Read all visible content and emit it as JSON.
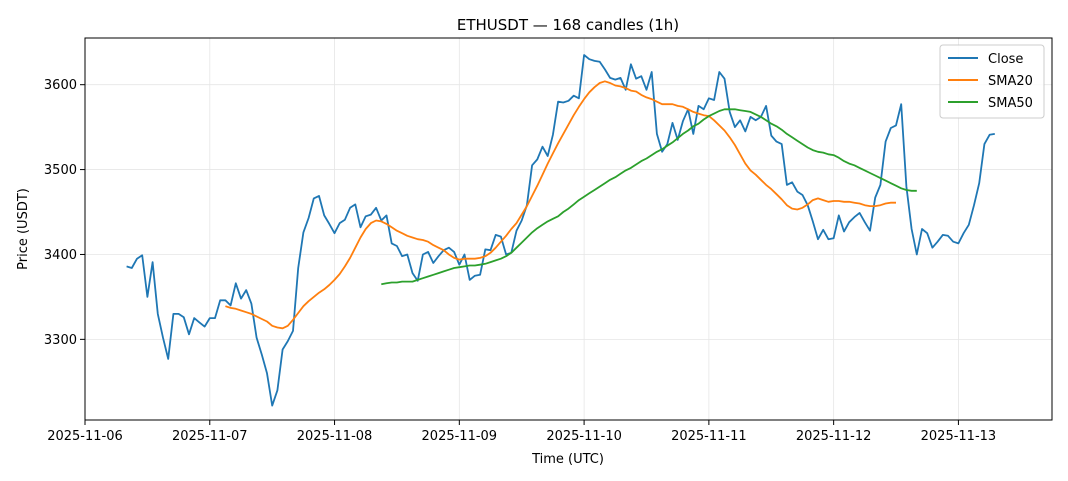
{
  "chart_data": {
    "type": "line",
    "title": "ETHUSDT — 168 candles (1h)",
    "xlabel": "Time (UTC)",
    "ylabel": "Price (USDT)",
    "x_start": "2025-11-06 08:00",
    "x_step_hours": 1,
    "xlim": [
      "2025-11-06 00:00",
      "2025-11-13 18:00"
    ],
    "ylim": [
      3205,
      3655
    ],
    "x_ticks": [
      "2025-11-06",
      "2025-11-07",
      "2025-11-08",
      "2025-11-09",
      "2025-11-10",
      "2025-11-11",
      "2025-11-12",
      "2025-11-13"
    ],
    "y_ticks": [
      3300,
      3400,
      3500,
      3600
    ],
    "grid": true,
    "legend_position": "top-right",
    "series": [
      {
        "name": "Close",
        "color": "#1f77b4",
        "start_index": 0,
        "values": [
          3386,
          3384,
          3395,
          3399,
          3350,
          3391,
          3330,
          3302,
          3277,
          3330,
          3330,
          3326,
          3306,
          3325,
          3320,
          3315,
          3325,
          3325,
          3346,
          3346,
          3340,
          3366,
          3348,
          3358,
          3342,
          3302,
          3282,
          3260,
          3222,
          3240,
          3288,
          3298,
          3310,
          3384,
          3426,
          3443,
          3466,
          3469,
          3446,
          3436,
          3425,
          3437,
          3441,
          3455,
          3459,
          3432,
          3445,
          3447,
          3455,
          3440,
          3446,
          3413,
          3410,
          3398,
          3400,
          3378,
          3369,
          3400,
          3403,
          3390,
          3398,
          3405,
          3408,
          3403,
          3388,
          3400,
          3370,
          3375,
          3376,
          3406,
          3405,
          3423,
          3421,
          3400,
          3402,
          3428,
          3440,
          3458,
          3505,
          3512,
          3527,
          3516,
          3541,
          3580,
          3579,
          3581,
          3587,
          3584,
          3635,
          3630,
          3628,
          3627,
          3618,
          3608,
          3606,
          3608,
          3594,
          3624,
          3607,
          3610,
          3594,
          3615,
          3542,
          3521,
          3530,
          3555,
          3535,
          3557,
          3571,
          3542,
          3575,
          3571,
          3584,
          3582,
          3615,
          3607,
          3568,
          3550,
          3558,
          3545,
          3562,
          3558,
          3562,
          3575,
          3540,
          3533,
          3530,
          3482,
          3485,
          3474,
          3470,
          3458,
          3439,
          3418,
          3429,
          3418,
          3419,
          3446,
          3427,
          3438,
          3444,
          3449,
          3438,
          3428,
          3467,
          3482,
          3533,
          3549,
          3552,
          3577,
          3480,
          3430,
          3400,
          3430,
          3425,
          3408,
          3415,
          3423,
          3422,
          3415,
          3413,
          3425,
          3435,
          3458,
          3484,
          3530,
          3541,
          3542
        ]
      },
      {
        "name": "SMA20",
        "color": "#ff7f0e",
        "start_index": 19,
        "values": [
          3339,
          3337,
          3336,
          3334,
          3332,
          3330,
          3327,
          3324,
          3321,
          3316,
          3314,
          3313,
          3316,
          3323,
          3331,
          3339,
          3345,
          3350,
          3355,
          3359,
          3364,
          3370,
          3377,
          3386,
          3396,
          3408,
          3420,
          3430,
          3437,
          3440,
          3439,
          3436,
          3432,
          3428,
          3425,
          3422,
          3420,
          3418,
          3417,
          3415,
          3411,
          3408,
          3405,
          3400,
          3396,
          3394,
          3395,
          3395,
          3395,
          3396,
          3398,
          3402,
          3408,
          3415,
          3422,
          3430,
          3437,
          3447,
          3457,
          3469,
          3481,
          3494,
          3507,
          3519,
          3531,
          3542,
          3553,
          3564,
          3574,
          3583,
          3591,
          3597,
          3602,
          3604,
          3602,
          3599,
          3598,
          3596,
          3593,
          3592,
          3588,
          3585,
          3583,
          3580,
          3577,
          3577,
          3577,
          3575,
          3574,
          3571,
          3568,
          3566,
          3564,
          3563,
          3558,
          3552,
          3546,
          3538,
          3529,
          3518,
          3507,
          3499,
          3494,
          3488,
          3482,
          3477,
          3471,
          3465,
          3458,
          3454,
          3453,
          3455,
          3459,
          3464,
          3466,
          3464,
          3462,
          3463,
          3463,
          3462,
          3462,
          3461,
          3460,
          3458,
          3457,
          3457,
          3458,
          3460,
          3461,
          3461
        ]
      },
      {
        "name": "SMA50",
        "color": "#2ca02c",
        "start_index": 49,
        "values": [
          3365,
          3366,
          3367,
          3367,
          3368,
          3368,
          3368,
          3370,
          3372,
          3374,
          3376,
          3378,
          3380,
          3382,
          3384,
          3385,
          3386,
          3387,
          3387,
          3388,
          3389,
          3391,
          3393,
          3395,
          3398,
          3402,
          3408,
          3414,
          3420,
          3426,
          3431,
          3435,
          3439,
          3442,
          3445,
          3450,
          3454,
          3459,
          3464,
          3468,
          3472,
          3476,
          3480,
          3484,
          3488,
          3491,
          3495,
          3499,
          3502,
          3506,
          3510,
          3513,
          3517,
          3521,
          3524,
          3528,
          3532,
          3537,
          3542,
          3546,
          3551,
          3554,
          3559,
          3563,
          3566,
          3569,
          3571,
          3571,
          3571,
          3570,
          3569,
          3568,
          3565,
          3562,
          3558,
          3554,
          3551,
          3547,
          3542,
          3538,
          3534,
          3530,
          3526,
          3523,
          3521,
          3520,
          3518,
          3517,
          3514,
          3510,
          3507,
          3505,
          3502,
          3499,
          3496,
          3493,
          3490,
          3487,
          3484,
          3481,
          3478,
          3476,
          3475,
          3475
        ]
      }
    ]
  }
}
